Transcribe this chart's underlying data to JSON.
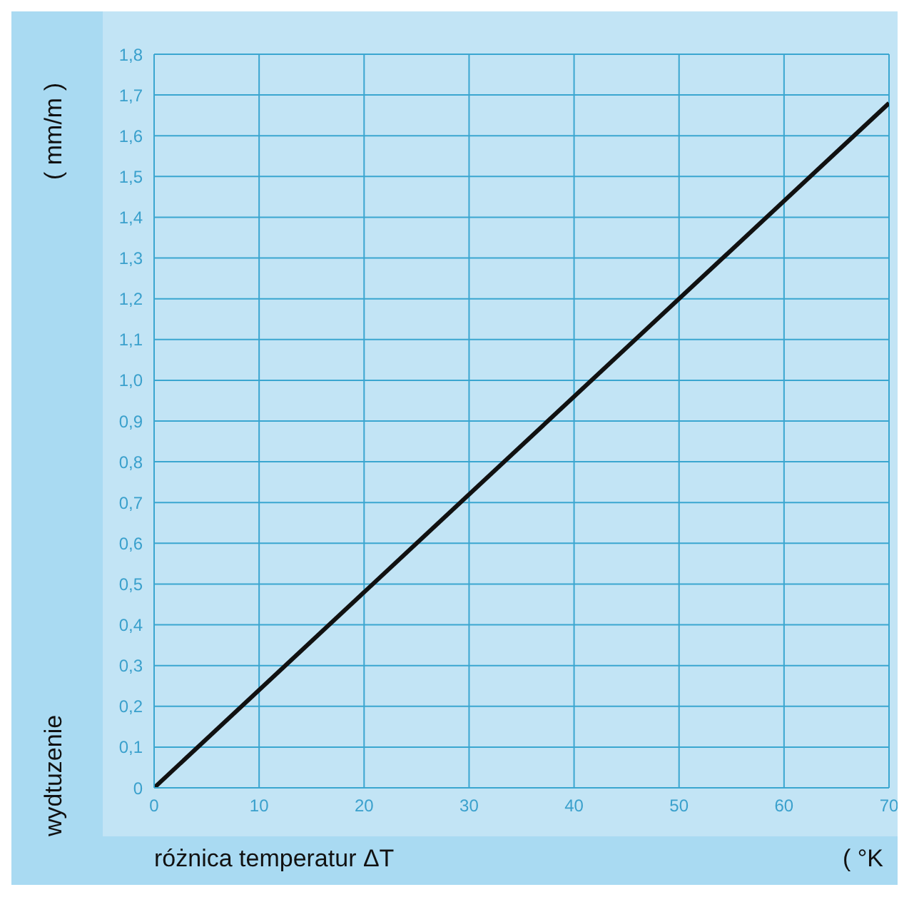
{
  "chart_data": {
    "type": "line",
    "xlabel": "różnica temperatur ΔT",
    "ylabel": "wydtuzenie",
    "annotations": [
      "( mm/m )",
      "( °K"
    ],
    "x": [
      0,
      70
    ],
    "series": [
      {
        "color": "#111111",
        "values": [
          0,
          1.68
        ]
      }
    ],
    "xlim": [
      0,
      70
    ],
    "xticks": [
      0,
      10,
      20,
      30,
      40,
      50,
      60,
      70
    ],
    "ylim": [
      0,
      1.8
    ],
    "yticks": [
      0,
      {
        "value": 0.1,
        "label": "0,1"
      },
      {
        "value": 0.2,
        "label": "0,2"
      },
      {
        "value": 0.3,
        "label": "0,3"
      },
      {
        "value": 0.4,
        "label": "0,4"
      },
      {
        "value": 0.5,
        "label": "0,5"
      },
      {
        "value": 0.6,
        "label": "0,6"
      },
      {
        "value": 0.7,
        "label": "0,7"
      },
      {
        "value": 0.8,
        "label": "0,8"
      },
      {
        "value": 0.9,
        "label": "0,9"
      },
      {
        "value": 1.0,
        "label": "1,0"
      },
      {
        "value": 1.1,
        "label": "1,1"
      },
      {
        "value": 1.2,
        "label": "1,2"
      },
      {
        "value": 1.3,
        "label": "1,3"
      },
      {
        "value": 1.4,
        "label": "1,4"
      },
      {
        "value": 1.5,
        "label": "1,5"
      },
      {
        "value": 1.6,
        "label": "1,6"
      },
      {
        "value": 1.7,
        "label": "1,7"
      },
      {
        "value": 1.8,
        "label": "1,8"
      }
    ],
    "grid": true,
    "marker": "none",
    "line_style": "solid"
  }
}
